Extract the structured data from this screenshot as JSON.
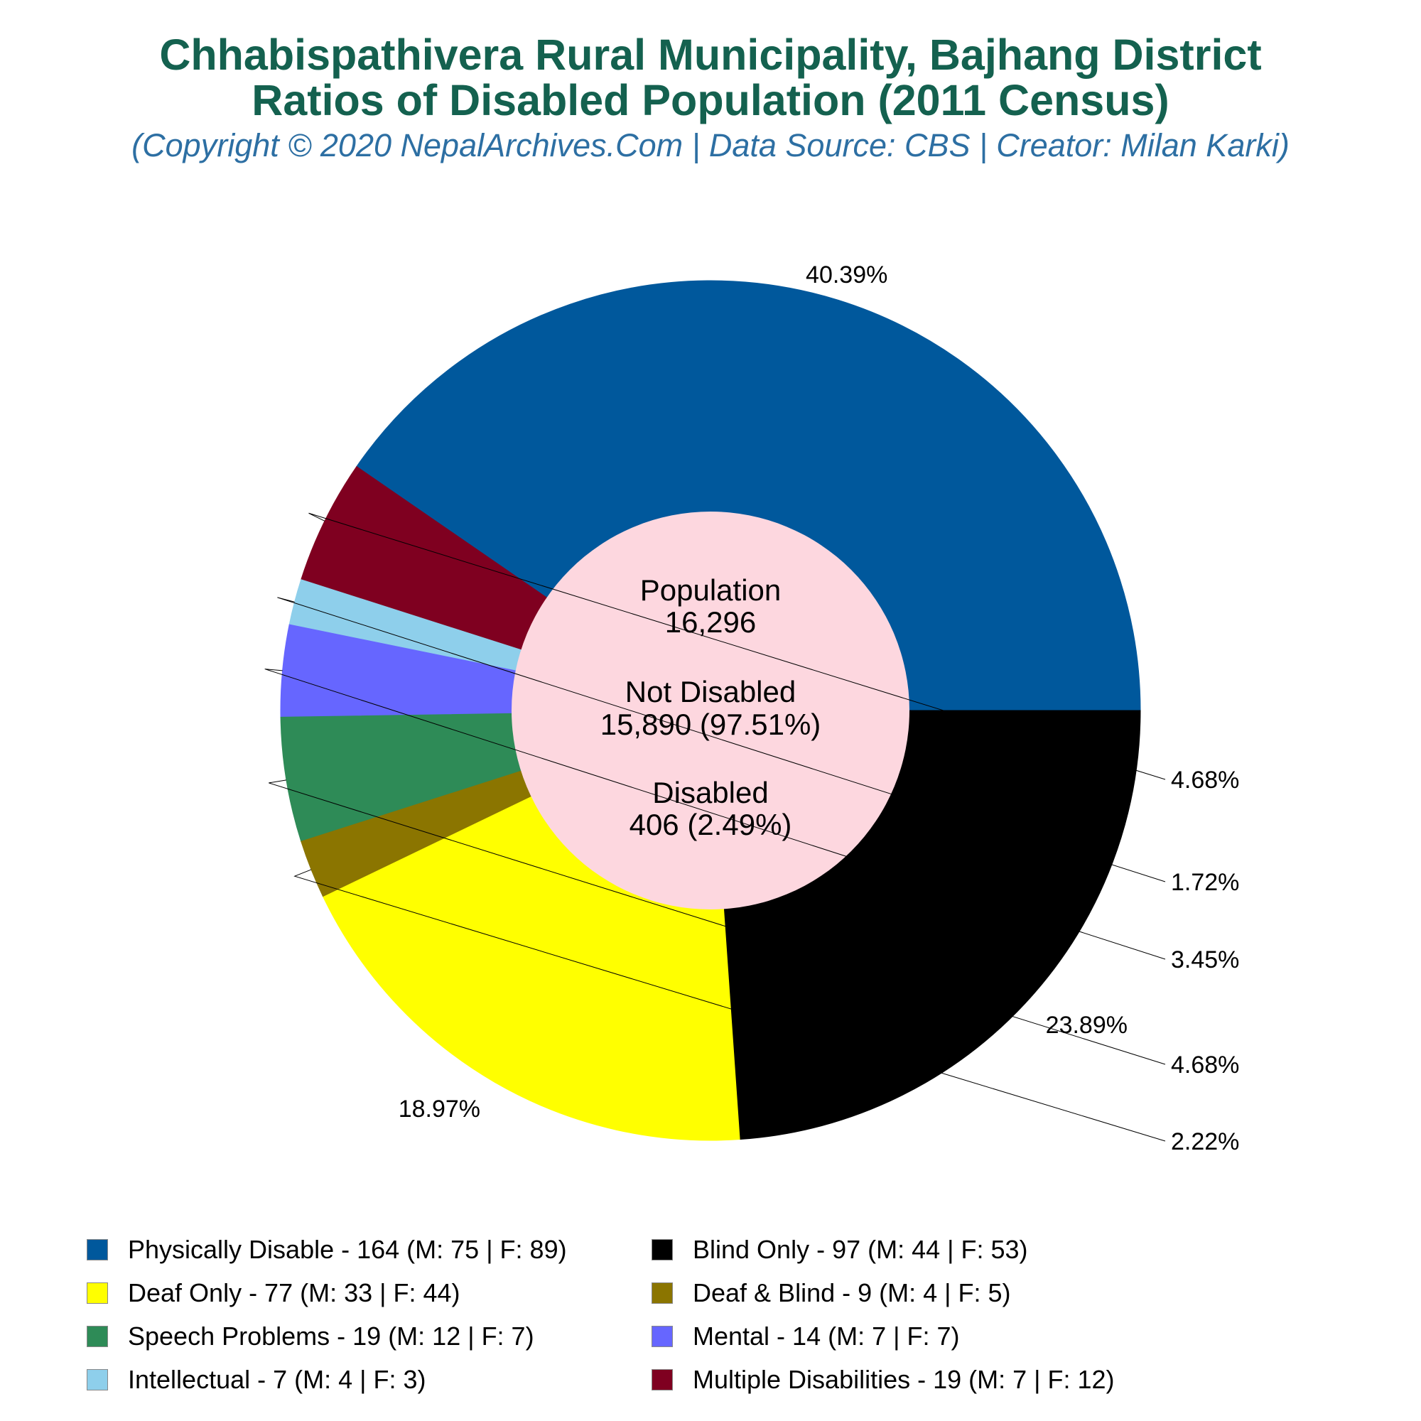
{
  "title_line1": "Chhabispathivera Rural Municipality, Bajhang District",
  "title_line2": "Ratios of Disabled Population (2011 Census)",
  "subtitle": "(Copyright © 2020 NepalArchives.Com | Data Source: CBS | Creator: Milan Karki)",
  "center": {
    "population_label": "Population",
    "population_value": "16,296",
    "not_disabled_label": "Not Disabled",
    "not_disabled_value": "15,890 (97.51%)",
    "disabled_label": "Disabled",
    "disabled_value": "406 (2.49%)"
  },
  "chart_data": {
    "type": "pie",
    "total_disabled": 406,
    "slices": [
      {
        "label": "Physically Disable",
        "value": 164,
        "male": 75,
        "female": 89,
        "percent_label": "40.39%",
        "color": "#00589c"
      },
      {
        "label": "Multiple Disabilities",
        "value": 19,
        "male": 7,
        "female": 12,
        "percent_label": "4.68%",
        "color": "#7f0020"
      },
      {
        "label": "Intellectual",
        "value": 7,
        "male": 4,
        "female": 3,
        "percent_label": "1.72%",
        "color": "#8ecfeb"
      },
      {
        "label": "Mental",
        "value": 14,
        "male": 7,
        "female": 7,
        "percent_label": "3.45%",
        "color": "#6666ff"
      },
      {
        "label": "Speech Problems",
        "value": 19,
        "male": 12,
        "female": 7,
        "percent_label": "4.68%",
        "color": "#2e8b57"
      },
      {
        "label": "Deaf & Blind",
        "value": 9,
        "male": 4,
        "female": 5,
        "percent_label": "2.22%",
        "color": "#8b7500"
      },
      {
        "label": "Deaf Only",
        "value": 77,
        "male": 33,
        "female": 44,
        "percent_label": "18.97%",
        "color": "#ffff00"
      },
      {
        "label": "Blind Only",
        "value": 97,
        "male": 44,
        "female": 53,
        "percent_label": "23.89%",
        "color": "#000000"
      }
    ],
    "legend": [
      {
        "text": "Physically Disable - 164 (M: 75 | F: 89)",
        "color": "#00589c"
      },
      {
        "text": "Blind Only - 97 (M: 44 | F: 53)",
        "color": "#000000"
      },
      {
        "text": "Deaf Only - 77 (M: 33 | F: 44)",
        "color": "#ffff00"
      },
      {
        "text": "Deaf & Blind - 9 (M: 4 | F: 5)",
        "color": "#8b7500"
      },
      {
        "text": "Speech Problems - 19 (M: 12 | F: 7)",
        "color": "#2e8b57"
      },
      {
        "text": "Mental - 14 (M: 7 | F: 7)",
        "color": "#6666ff"
      },
      {
        "text": "Intellectual - 7 (M: 4 | F: 3)",
        "color": "#8ecfeb"
      },
      {
        "text": "Multiple Disabilities - 19 (M: 7 | F: 12)",
        "color": "#7f0020"
      }
    ],
    "center_hole_color": "#fdd7df"
  }
}
